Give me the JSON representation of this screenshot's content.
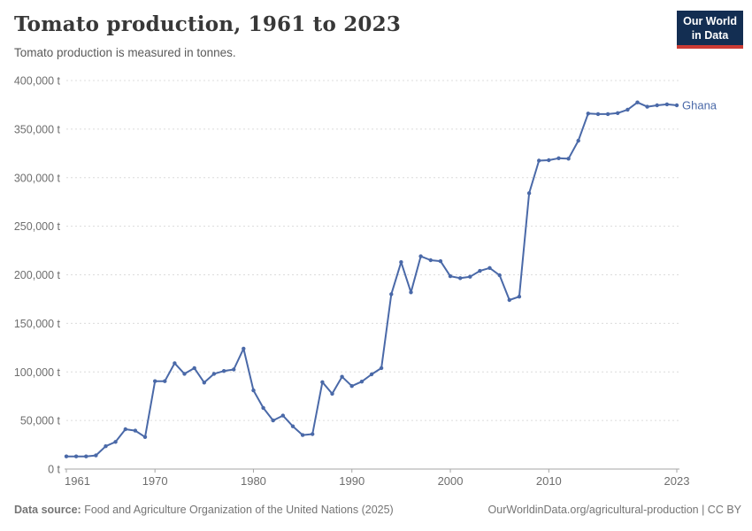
{
  "header": {
    "title": "Tomato production, 1961 to 2023",
    "subtitle": "Tomato production is measured in tonnes.",
    "logo_line1": "Our World",
    "logo_line2": "in Data"
  },
  "footer": {
    "source_label": "Data source:",
    "source_text": " Food and Agriculture Organization of the United Nations (2025)",
    "credit": "OurWorldinData.org/agricultural-production | CC BY"
  },
  "colors": {
    "series": "#4a69a8",
    "grid": "#dcdcdc",
    "axis": "#a5a5a5",
    "tick_label": "#6e6e6e",
    "logo_bg": "#132e52",
    "logo_accent": "#cc3b34"
  },
  "chart_data": {
    "type": "line",
    "title": "Tomato production, 1961 to 2023",
    "subtitle": "Tomato production is measured in tonnes.",
    "unit": "t",
    "xlim": [
      1961,
      2023
    ],
    "ylim": [
      0,
      400000
    ],
    "x_ticks": [
      1961,
      1970,
      1980,
      1990,
      2000,
      2010,
      2023
    ],
    "y_ticks": [
      0,
      50000,
      100000,
      150000,
      200000,
      250000,
      300000,
      350000,
      400000
    ],
    "grid": "horizontal-dashed",
    "legend_position": "right-of-last-point",
    "series": [
      {
        "name": "Ghana",
        "color": "#4a69a8",
        "x": [
          1961,
          1962,
          1963,
          1964,
          1965,
          1966,
          1967,
          1968,
          1969,
          1970,
          1971,
          1972,
          1973,
          1974,
          1975,
          1976,
          1977,
          1978,
          1979,
          1980,
          1981,
          1982,
          1983,
          1984,
          1985,
          1986,
          1987,
          1988,
          1989,
          1990,
          1991,
          1992,
          1993,
          1994,
          1995,
          1996,
          1997,
          1998,
          1999,
          2000,
          2001,
          2002,
          2003,
          2004,
          2005,
          2006,
          2007,
          2008,
          2009,
          2010,
          2011,
          2012,
          2013,
          2014,
          2015,
          2016,
          2017,
          2018,
          2019,
          2020,
          2021,
          2022,
          2023
        ],
        "values": [
          13000,
          13000,
          13000,
          14000,
          23500,
          28000,
          41000,
          39500,
          33000,
          90500,
          90500,
          109000,
          98000,
          104000,
          89000,
          98000,
          101000,
          102500,
          124000,
          81000,
          63000,
          50000,
          55000,
          44000,
          35000,
          36000,
          89500,
          77500,
          95000,
          85500,
          90000,
          97500,
          104000,
          180000,
          213000,
          182000,
          219000,
          215000,
          214000,
          198500,
          196500,
          198000,
          204000,
          207000,
          199500,
          174000,
          177500,
          284000,
          317500,
          318000,
          320000,
          319500,
          338000,
          366000,
          365500,
          365500,
          366500,
          370000,
          377500,
          373000,
          374500,
          375500,
          374500
        ]
      }
    ]
  }
}
